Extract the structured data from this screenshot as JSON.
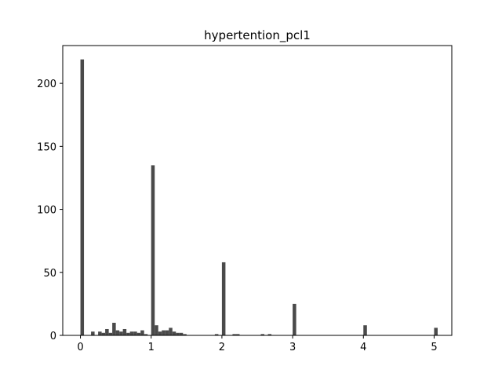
{
  "chart_data": {
    "type": "bar",
    "title": "hypertention_pcl1",
    "xlabel": "",
    "ylabel": "",
    "xlim": [
      -0.25,
      5.25
    ],
    "ylim": [
      0,
      230
    ],
    "grid": false,
    "bar_color": "#4a4a4a",
    "bin_width": 0.05,
    "x_ticks": [
      0,
      1,
      2,
      3,
      4,
      5
    ],
    "y_ticks": [
      0,
      50,
      100,
      150,
      200
    ],
    "bins": [
      {
        "x": 0.0,
        "count": 219
      },
      {
        "x": 0.15,
        "count": 3
      },
      {
        "x": 0.25,
        "count": 3
      },
      {
        "x": 0.3,
        "count": 2
      },
      {
        "x": 0.35,
        "count": 5
      },
      {
        "x": 0.4,
        "count": 2
      },
      {
        "x": 0.45,
        "count": 10
      },
      {
        "x": 0.5,
        "count": 4
      },
      {
        "x": 0.55,
        "count": 3
      },
      {
        "x": 0.6,
        "count": 5
      },
      {
        "x": 0.65,
        "count": 2
      },
      {
        "x": 0.7,
        "count": 3
      },
      {
        "x": 0.75,
        "count": 3
      },
      {
        "x": 0.8,
        "count": 2
      },
      {
        "x": 0.85,
        "count": 4
      },
      {
        "x": 0.9,
        "count": 1
      },
      {
        "x": 1.0,
        "count": 135
      },
      {
        "x": 1.05,
        "count": 8
      },
      {
        "x": 1.1,
        "count": 3
      },
      {
        "x": 1.15,
        "count": 4
      },
      {
        "x": 1.2,
        "count": 4
      },
      {
        "x": 1.25,
        "count": 6
      },
      {
        "x": 1.3,
        "count": 3
      },
      {
        "x": 1.35,
        "count": 2
      },
      {
        "x": 1.4,
        "count": 2
      },
      {
        "x": 1.45,
        "count": 1
      },
      {
        "x": 1.9,
        "count": 1
      },
      {
        "x": 2.0,
        "count": 58
      },
      {
        "x": 2.15,
        "count": 1
      },
      {
        "x": 2.2,
        "count": 1
      },
      {
        "x": 2.55,
        "count": 1
      },
      {
        "x": 2.65,
        "count": 1
      },
      {
        "x": 3.0,
        "count": 25
      },
      {
        "x": 4.0,
        "count": 8
      },
      {
        "x": 5.0,
        "count": 6
      }
    ]
  }
}
